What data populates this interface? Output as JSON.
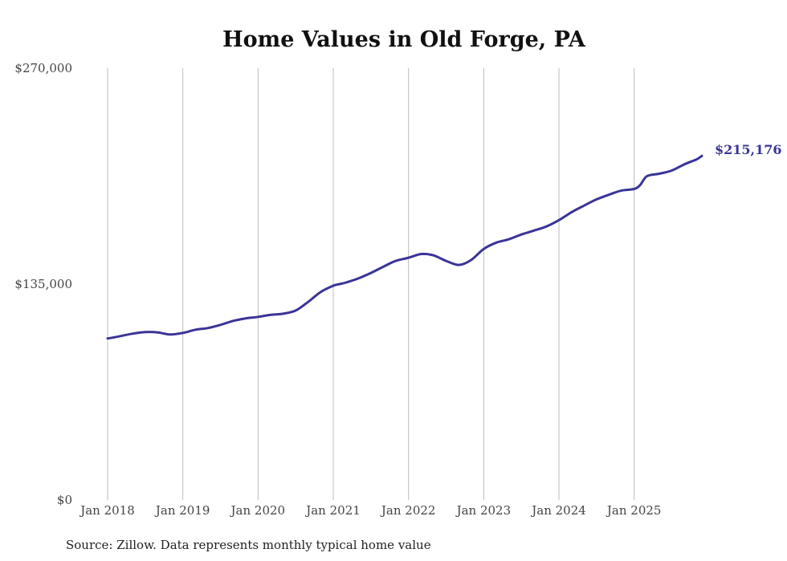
{
  "chart_data": {
    "type": "line",
    "title": "Home Values in Old Forge, PA",
    "source": "Source: Zillow. Data represents monthly typical home value",
    "ylim": [
      0,
      270000
    ],
    "ytick_labels": [
      "$270,000",
      "$135,000",
      "$0"
    ],
    "ytick_values": [
      270000,
      135000,
      0
    ],
    "xtick_labels": [
      "Jan 2018",
      "Jan 2019",
      "Jan 2020",
      "Jan 2021",
      "Jan 2022",
      "Jan 2023",
      "Jan 2024",
      "Jan 2025"
    ],
    "xtick_values": [
      2018,
      2019,
      2020,
      2021,
      2022,
      2023,
      2024,
      2025
    ],
    "xlim": [
      2018,
      2025.9
    ],
    "grid": true,
    "line_color": "#3a3497",
    "end_label": "$215,176",
    "series": [
      {
        "name": "Typical home value",
        "x": [
          2018.0,
          2018.17,
          2018.33,
          2018.5,
          2018.67,
          2018.83,
          2019.0,
          2019.17,
          2019.33,
          2019.5,
          2019.67,
          2019.83,
          2020.0,
          2020.17,
          2020.33,
          2020.5,
          2020.67,
          2020.83,
          2021.0,
          2021.08,
          2021.17,
          2021.33,
          2021.5,
          2021.67,
          2021.83,
          2022.0,
          2022.17,
          2022.33,
          2022.5,
          2022.67,
          2022.83,
          2023.0,
          2023.17,
          2023.33,
          2023.5,
          2023.67,
          2023.83,
          2024.0,
          2024.17,
          2024.33,
          2024.5,
          2024.67,
          2024.83,
          2025.0,
          2025.08,
          2025.17,
          2025.33,
          2025.5,
          2025.67,
          2025.83,
          2025.9
        ],
        "values": [
          101000,
          102500,
          104000,
          105000,
          104800,
          103500,
          104500,
          106500,
          107500,
          109500,
          112000,
          113500,
          114500,
          115800,
          116500,
          118500,
          124000,
          130000,
          134000,
          135000,
          136000,
          138500,
          142000,
          146000,
          149500,
          151500,
          153800,
          153000,
          149500,
          147000,
          150000,
          157000,
          161000,
          163000,
          166000,
          168500,
          171000,
          175000,
          180000,
          184000,
          188000,
          191000,
          193500,
          194500,
          197000,
          202500,
          204000,
          206000,
          210000,
          213000,
          215176
        ]
      }
    ]
  }
}
